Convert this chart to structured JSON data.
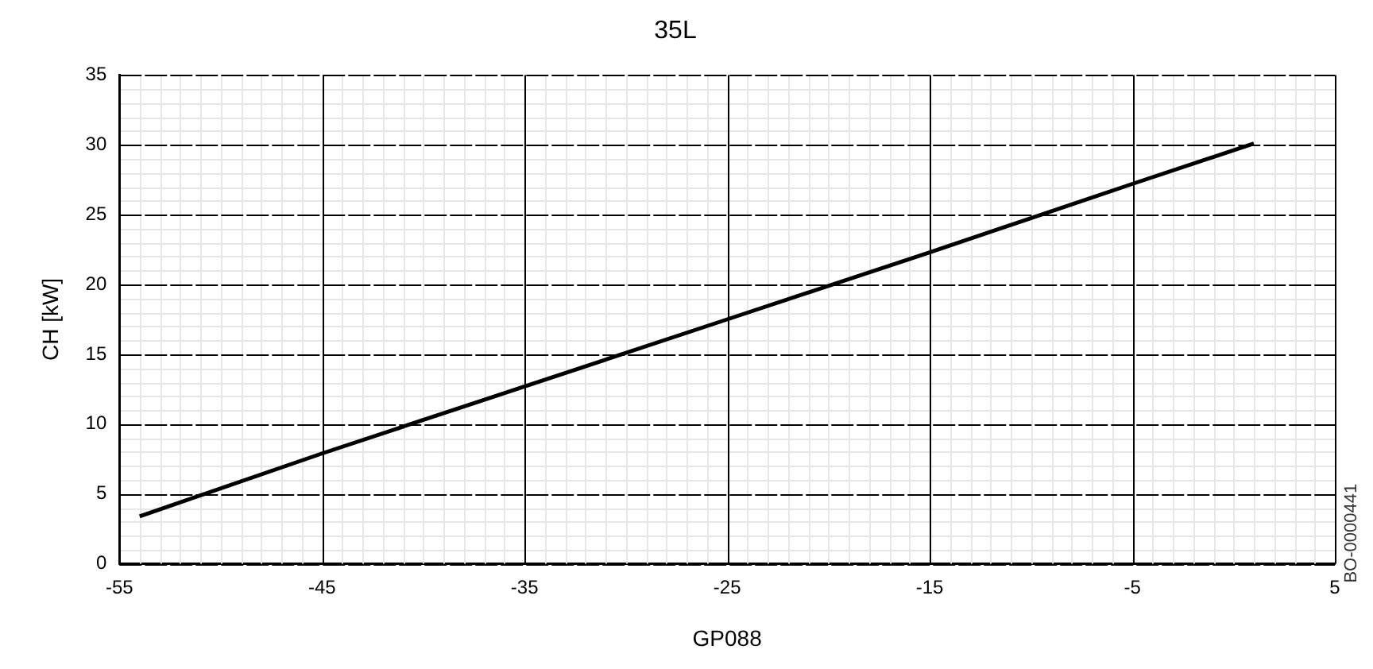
{
  "chart_data": {
    "type": "line",
    "title": "35L",
    "xlabel": "GP088",
    "ylabel": "CH [kW]",
    "x": [
      -54,
      -45,
      -35,
      -25,
      -15,
      -5,
      1
    ],
    "series": [
      {
        "color": "#000000",
        "values": [
          3.4,
          7.9,
          12.7,
          17.5,
          22.3,
          27.2,
          30.1
        ]
      }
    ],
    "xlim": [
      -55,
      5
    ],
    "xticks": [
      -55,
      -45,
      -35,
      -25,
      -15,
      -5,
      5
    ],
    "ylim": [
      0,
      35
    ],
    "yticks": [
      0,
      5,
      10,
      15,
      20,
      25,
      30,
      35
    ],
    "grid": true,
    "legend": false,
    "marker": "none",
    "line_style": "solid",
    "annotations": [
      "BO-0000441"
    ]
  }
}
